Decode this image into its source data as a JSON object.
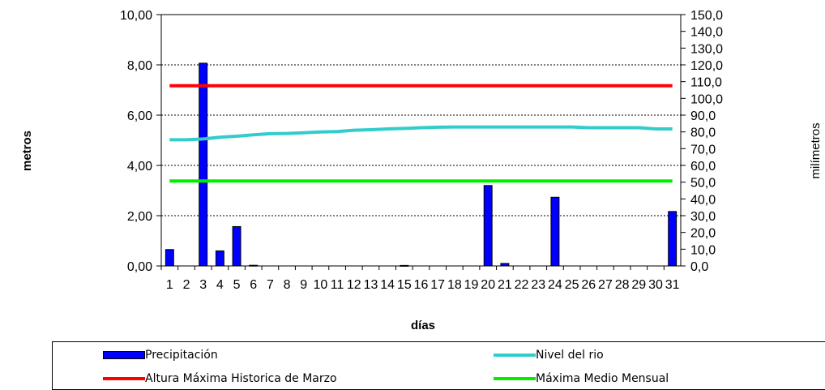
{
  "chart_data": {
    "type": "bar",
    "categories": [
      "1",
      "2",
      "3",
      "4",
      "5",
      "6",
      "7",
      "8",
      "9",
      "10",
      "11",
      "12",
      "13",
      "14",
      "15",
      "16",
      "17",
      "18",
      "19",
      "20",
      "21",
      "22",
      "23",
      "24",
      "25",
      "26",
      "27",
      "28",
      "29",
      "30",
      "31"
    ],
    "xlabel": "días",
    "ylabel": "metros",
    "ylabel_right": "milímetros",
    "ylim": [
      0,
      10
    ],
    "ylim_right": [
      0,
      150
    ],
    "y_ticks": [
      "0,00",
      "2,00",
      "4,00",
      "6,00",
      "8,00",
      "10,00"
    ],
    "y_ticks_right": [
      "0,0",
      "10,0",
      "20,0",
      "30,0",
      "40,0",
      "50,0",
      "60,0",
      "70,0",
      "80,0",
      "90,0",
      "100,0",
      "110,0",
      "120,0",
      "130,0",
      "140,0",
      "150,0"
    ],
    "grid": true,
    "legend_position": "bottom",
    "series": [
      {
        "name": "Precipitación",
        "kind": "bar",
        "axis": "right",
        "color": "#0000ff",
        "values": [
          9.8,
          0,
          121.0,
          9.0,
          23.5,
          0.4,
          0,
          0,
          0,
          0,
          0,
          0,
          0,
          0,
          0.3,
          0,
          0,
          0,
          0,
          48.0,
          1.5,
          0,
          0,
          41.0,
          0,
          0,
          0,
          0,
          0,
          0,
          32.5
        ]
      },
      {
        "name": "Nivel del rio",
        "kind": "line",
        "axis": "left",
        "color": "#33cccc",
        "values": [
          5.02,
          5.02,
          5.05,
          5.12,
          5.16,
          5.22,
          5.26,
          5.27,
          5.3,
          5.33,
          5.35,
          5.4,
          5.42,
          5.45,
          5.47,
          5.5,
          5.52,
          5.53,
          5.53,
          5.53,
          5.53,
          5.53,
          5.53,
          5.53,
          5.53,
          5.5,
          5.5,
          5.5,
          5.5,
          5.45,
          5.45
        ]
      },
      {
        "name": "Altura Máxima Historica de Marzo",
        "kind": "line",
        "axis": "left",
        "color": "#ff0000",
        "values": [
          7.17,
          7.17,
          7.17,
          7.17,
          7.17,
          7.17,
          7.17,
          7.17,
          7.17,
          7.17,
          7.17,
          7.17,
          7.17,
          7.17,
          7.17,
          7.17,
          7.17,
          7.17,
          7.17,
          7.17,
          7.17,
          7.17,
          7.17,
          7.17,
          7.17,
          7.17,
          7.17,
          7.17,
          7.17,
          7.17,
          7.17
        ]
      },
      {
        "name": "Máxima Medio Mensual",
        "kind": "line",
        "axis": "left",
        "color": "#00ee00",
        "values": [
          3.38,
          3.38,
          3.38,
          3.38,
          3.38,
          3.38,
          3.38,
          3.38,
          3.38,
          3.38,
          3.38,
          3.38,
          3.38,
          3.38,
          3.38,
          3.38,
          3.38,
          3.38,
          3.38,
          3.38,
          3.38,
          3.38,
          3.38,
          3.38,
          3.38,
          3.38,
          3.38,
          3.38,
          3.38,
          3.38,
          3.38
        ]
      }
    ]
  },
  "legend": {
    "items": [
      {
        "label": "Precipitación",
        "kind": "bar",
        "color": "#0000ff"
      },
      {
        "label": "Nivel del rio",
        "kind": "line",
        "color": "#33cccc"
      },
      {
        "label": "Altura Máxima Historica de Marzo",
        "kind": "line",
        "color": "#ff0000"
      },
      {
        "label": "Máxima Medio Mensual",
        "kind": "line",
        "color": "#00ee00"
      }
    ]
  }
}
